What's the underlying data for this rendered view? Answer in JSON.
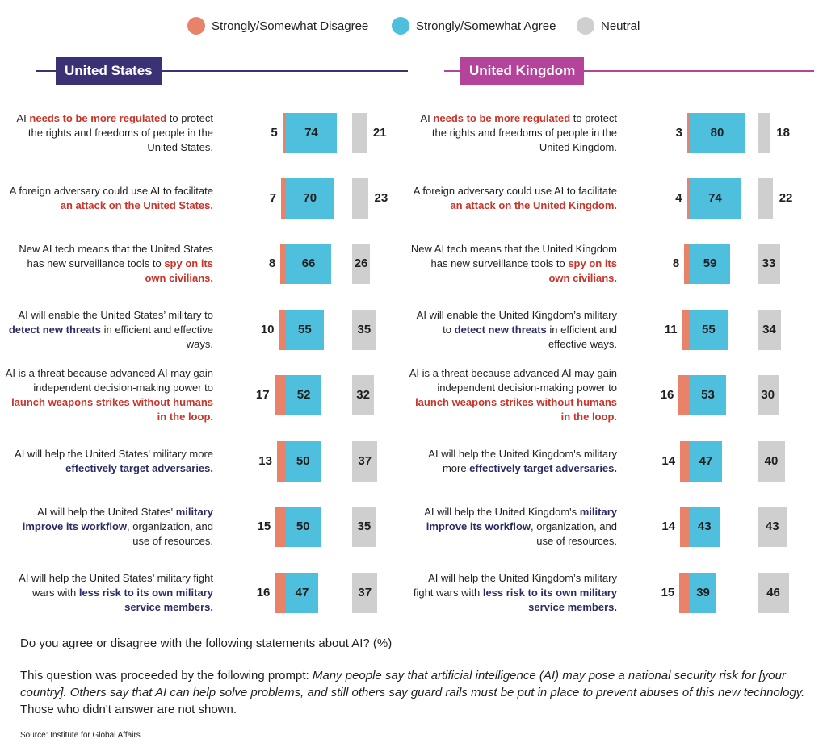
{
  "legend": [
    {
      "label": "Strongly/Somewhat Disagree",
      "color": "#e8836a"
    },
    {
      "label": "Strongly/Somewhat Agree",
      "color": "#4fbfde"
    },
    {
      "label": "Neutral",
      "color": "#cfcfcf"
    }
  ],
  "colors": {
    "us_header": "#3b3275",
    "uk_header": "#b4439a",
    "highlight_red": "#c8352a",
    "highlight_navy": "#2b2c66"
  },
  "chart_data": [
    {
      "type": "bar",
      "title": "United States",
      "series_names": [
        "Strongly/Somewhat Disagree",
        "Strongly/Somewhat Agree",
        "Neutral"
      ],
      "rows": [
        {
          "parts": [
            {
              "t": "AI "
            },
            {
              "t": "needs to be more regulated",
              "c": "red"
            },
            {
              "t": " to protect the rights and freedoms of people in the United States."
            }
          ],
          "disagree": 5,
          "agree": 74,
          "neutral": 21
        },
        {
          "parts": [
            {
              "t": "A foreign adversary could use AI to facilitate "
            },
            {
              "t": "an attack on the United States.",
              "c": "red"
            }
          ],
          "disagree": 7,
          "agree": 70,
          "neutral": 23
        },
        {
          "parts": [
            {
              "t": "New AI tech means that the United States has new surveillance tools to "
            },
            {
              "t": "spy on its own civilians.",
              "c": "red"
            }
          ],
          "disagree": 8,
          "agree": 66,
          "neutral": 26
        },
        {
          "parts": [
            {
              "t": "AI will enable the United States’ military to "
            },
            {
              "t": "detect new threats",
              "c": "navy"
            },
            {
              "t": " in efficient and effective ways."
            }
          ],
          "disagree": 10,
          "agree": 55,
          "neutral": 35
        },
        {
          "parts": [
            {
              "t": "AI is a threat because advanced AI may gain independent decision-making power to "
            },
            {
              "t": "launch weapons strikes without humans in the loop.",
              "c": "red"
            }
          ],
          "disagree": 17,
          "agree": 52,
          "neutral": 32
        },
        {
          "parts": [
            {
              "t": "AI will help the United States' military more "
            },
            {
              "t": "effectively target adversaries.",
              "c": "navy"
            }
          ],
          "disagree": 13,
          "agree": 50,
          "neutral": 37
        },
        {
          "parts": [
            {
              "t": "AI will help the United States' "
            },
            {
              "t": "military improve its workflow",
              "c": "navy"
            },
            {
              "t": ", organization, and use of resources."
            }
          ],
          "disagree": 15,
          "agree": 50,
          "neutral": 35
        },
        {
          "parts": [
            {
              "t": "AI will help the United States’ military fight wars with "
            },
            {
              "t": "less risk to its own military service members.",
              "c": "navy"
            }
          ],
          "disagree": 16,
          "agree": 47,
          "neutral": 37
        }
      ]
    },
    {
      "type": "bar",
      "title": "United Kingdom",
      "series_names": [
        "Strongly/Somewhat Disagree",
        "Strongly/Somewhat Agree",
        "Neutral"
      ],
      "rows": [
        {
          "parts": [
            {
              "t": "AI "
            },
            {
              "t": "needs to be more regulated",
              "c": "red"
            },
            {
              "t": " to protect the rights and freedoms of people in the United Kingdom."
            }
          ],
          "disagree": 3,
          "agree": 80,
          "neutral": 18
        },
        {
          "parts": [
            {
              "t": "A foreign adversary could use AI to facilitate "
            },
            {
              "t": "an attack on the United Kingdom.",
              "c": "red"
            }
          ],
          "disagree": 4,
          "agree": 74,
          "neutral": 22
        },
        {
          "parts": [
            {
              "t": "New AI tech means that the United Kingdom has new surveillance tools to "
            },
            {
              "t": "spy on its own civilians.",
              "c": "red"
            }
          ],
          "disagree": 8,
          "agree": 59,
          "neutral": 33
        },
        {
          "parts": [
            {
              "t": "AI will enable the United Kingdom’s military to "
            },
            {
              "t": "detect new threats",
              "c": "navy"
            },
            {
              "t": " in efficient and effective ways."
            }
          ],
          "disagree": 11,
          "agree": 55,
          "neutral": 34
        },
        {
          "parts": [
            {
              "t": "AI is a threat because advanced AI may gain independent decision-making power to "
            },
            {
              "t": "launch weapons strikes without humans in the loop.",
              "c": "red"
            }
          ],
          "disagree": 16,
          "agree": 53,
          "neutral": 30
        },
        {
          "parts": [
            {
              "t": "AI will help the United Kingdom's military more "
            },
            {
              "t": "effectively target adversaries.",
              "c": "navy"
            }
          ],
          "disagree": 14,
          "agree": 47,
          "neutral": 40
        },
        {
          "parts": [
            {
              "t": "AI will help the United Kingdom's "
            },
            {
              "t": "military improve its workflow",
              "c": "navy"
            },
            {
              "t": ", organization, and use of resources."
            }
          ],
          "disagree": 14,
          "agree": 43,
          "neutral": 43
        },
        {
          "parts": [
            {
              "t": "AI will help the United Kingdom’s military fight wars with "
            },
            {
              "t": "less risk to its own military service members.",
              "c": "navy"
            }
          ],
          "disagree": 15,
          "agree": 39,
          "neutral": 46
        }
      ]
    }
  ],
  "footer": {
    "question": "Do you agree or disagree with the following statements about AI? (%)",
    "note_lead": "This question was proceeded by the following prompt: ",
    "note_prompt": "Many people say that artificial intelligence (AI) may pose a national security risk for [your country]. Others say that AI can help solve problems, and still others say guard rails must be put in place to prevent abuses of this new technology.",
    "note_tail": " Those who didn't answer are not shown.",
    "source": "Source: Institute for Global Affairs"
  }
}
